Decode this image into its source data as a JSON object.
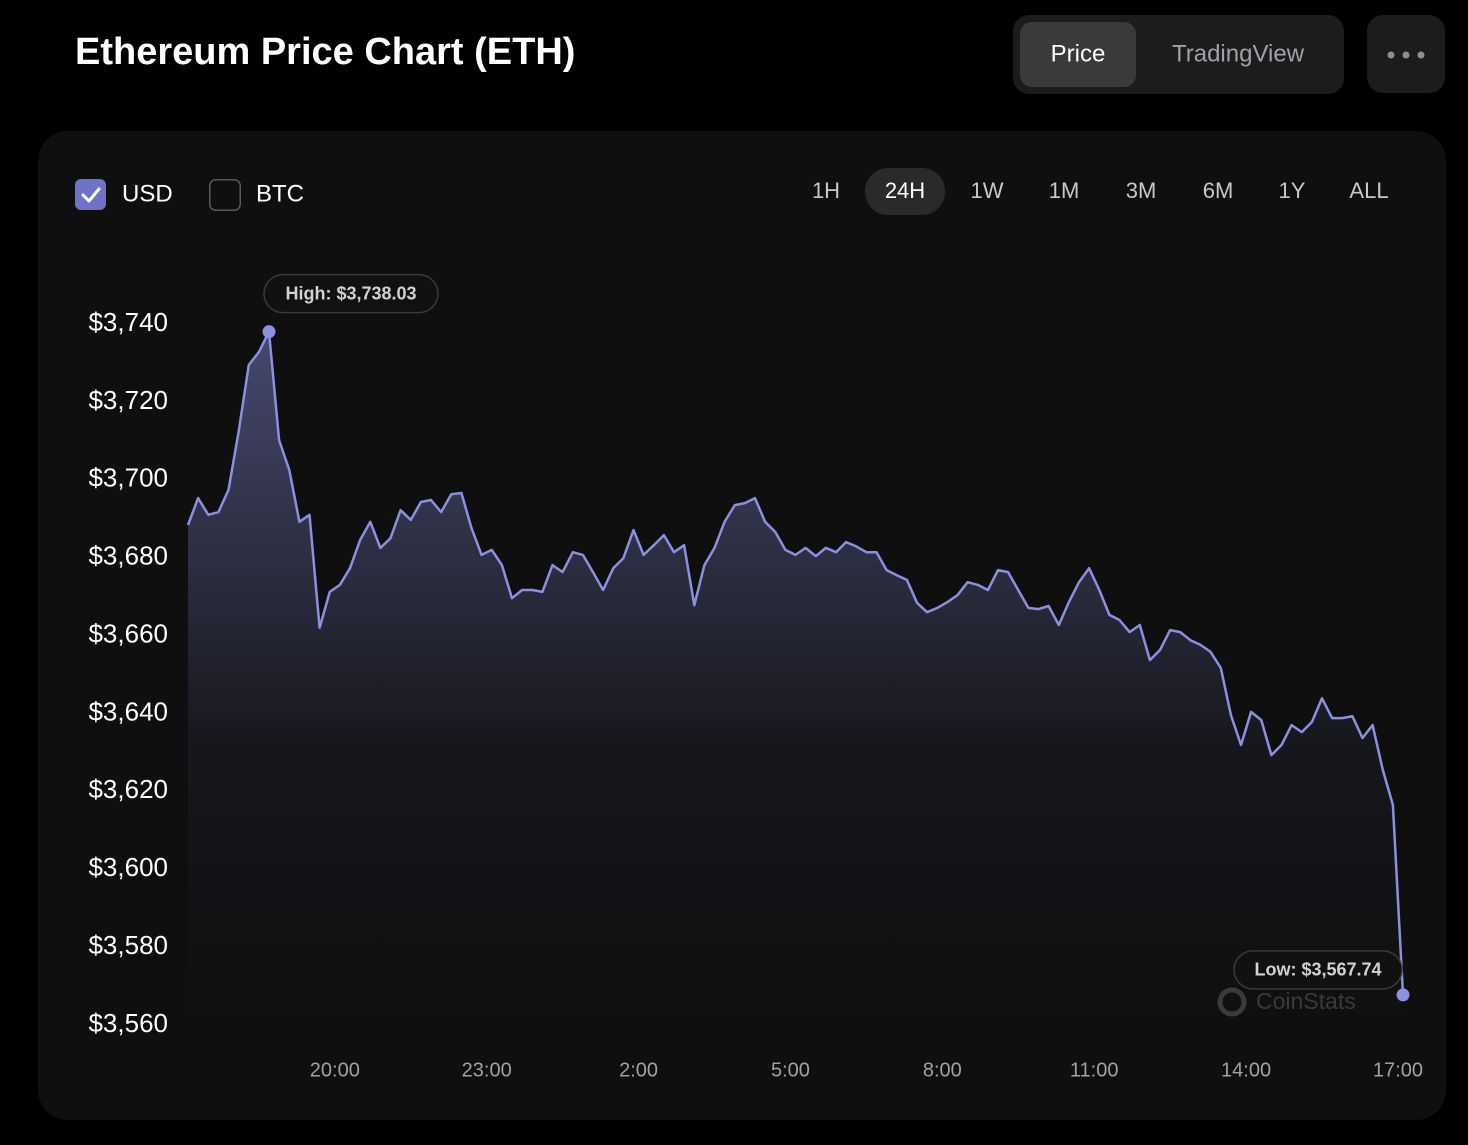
{
  "header": {
    "title": "Ethereum Price Chart (ETH)",
    "tabs": [
      "Price",
      "TradingView"
    ],
    "active_tab": 0
  },
  "currency_options": [
    {
      "label": "USD",
      "checked": true
    },
    {
      "label": "BTC",
      "checked": false
    }
  ],
  "ranges": [
    "1H",
    "24H",
    "1W",
    "1M",
    "3M",
    "6M",
    "1Y",
    "ALL"
  ],
  "active_range": 1,
  "chart_data": {
    "type": "line",
    "color": "#8b90e0",
    "high_label": "High: $3,738.03",
    "low_label": "Low: $3,567.74",
    "watermark": "CoinStats",
    "x": [
      0.1,
      0.3,
      0.5,
      0.7,
      0.9,
      1.1,
      1.3,
      1.5,
      1.7,
      1.9,
      2.1,
      2.3,
      2.5,
      2.7,
      2.9,
      3.1,
      3.3,
      3.5,
      3.7,
      3.9,
      4.1,
      4.3,
      4.5,
      4.7,
      4.9,
      5.1,
      5.3,
      5.5,
      5.7,
      5.9,
      6.1,
      6.3,
      6.5,
      6.7,
      6.9,
      7.1,
      7.3,
      7.5,
      7.7,
      7.9,
      8.1,
      8.3,
      8.5,
      8.7,
      8.9,
      9.1,
      9.3,
      9.5,
      9.7,
      9.9,
      10.1,
      10.3,
      10.5,
      10.7,
      10.9,
      11.1,
      11.3,
      11.5,
      11.7,
      11.9,
      12.1,
      12.3,
      12.5,
      12.7,
      12.9,
      13.1,
      13.3,
      13.5,
      13.7,
      13.9,
      14.1,
      14.3,
      14.5,
      14.7,
      14.9,
      15.1,
      15.3,
      15.5,
      15.7,
      15.9,
      16.1,
      16.3,
      16.5,
      16.7,
      16.9,
      17.1,
      17.3,
      17.5,
      17.7,
      17.9,
      18.1,
      18.3,
      18.5,
      18.7,
      18.9,
      19.1,
      19.3,
      19.5,
      19.7,
      19.9,
      20.1,
      20.3,
      20.5,
      20.7,
      20.9,
      21.1,
      21.3,
      21.5,
      21.7,
      21.9,
      22.1,
      22.3,
      22.5,
      22.7,
      22.9,
      23.1,
      23.3,
      23.5,
      23.7,
      23.9,
      24.1
    ],
    "values": [
      3688.4,
      3695.3,
      3691.0,
      3691.7,
      3697.4,
      3712.3,
      3729.5,
      3732.8,
      3738.03,
      3710.2,
      3702.5,
      3689.2,
      3691.0,
      3662.0,
      3671.2,
      3673.0,
      3677.3,
      3684.5,
      3689.2,
      3682.5,
      3685.0,
      3692.2,
      3689.7,
      3694.3,
      3694.8,
      3691.7,
      3696.3,
      3696.6,
      3687.6,
      3680.7,
      3682.0,
      3678.1,
      3669.6,
      3671.7,
      3671.7,
      3671.2,
      3678.1,
      3676.3,
      3681.4,
      3680.7,
      3676.3,
      3671.7,
      3677.3,
      3679.9,
      3687.1,
      3680.7,
      3683.2,
      3685.8,
      3681.4,
      3683.2,
      3667.8,
      3678.1,
      3682.5,
      3689.2,
      3693.5,
      3694.0,
      3695.3,
      3689.2,
      3686.6,
      3682.0,
      3680.7,
      3682.5,
      3680.4,
      3682.5,
      3681.4,
      3684.0,
      3682.9,
      3681.4,
      3681.4,
      3676.8,
      3675.5,
      3674.3,
      3668.4,
      3666.0,
      3667.1,
      3668.6,
      3670.4,
      3673.7,
      3673.0,
      3671.7,
      3676.8,
      3676.3,
      3671.7,
      3667.1,
      3666.8,
      3667.6,
      3662.7,
      3668.6,
      3673.7,
      3677.3,
      3671.7,
      3665.3,
      3664.0,
      3660.9,
      3662.7,
      3653.7,
      3656.3,
      3661.4,
      3660.9,
      3658.8,
      3657.6,
      3655.8,
      3651.7,
      3639.6,
      3631.9,
      3640.4,
      3638.3,
      3629.3,
      3631.9,
      3637.0,
      3635.2,
      3637.8,
      3643.9,
      3638.8,
      3638.8,
      3639.3,
      3633.7,
      3637.0,
      3625.5,
      3616.5,
      3567.74
    ],
    "xlim": [
      0.1,
      24.1
    ],
    "xticks": [
      {
        "value": 3,
        "label": "20:00"
      },
      {
        "value": 6,
        "label": "23:00"
      },
      {
        "value": 9,
        "label": "2:00"
      },
      {
        "value": 12,
        "label": "5:00"
      },
      {
        "value": 15,
        "label": "8:00"
      },
      {
        "value": 18,
        "label": "11:00"
      },
      {
        "value": 21,
        "label": "14:00"
      },
      {
        "value": 24,
        "label": "17:00"
      }
    ],
    "ylim": [
      3560,
      3740
    ],
    "yticks": [
      {
        "value": 3740,
        "label": "$3,740"
      },
      {
        "value": 3720,
        "label": "$3,720"
      },
      {
        "value": 3700,
        "label": "$3,700"
      },
      {
        "value": 3680,
        "label": "$3,680"
      },
      {
        "value": 3660,
        "label": "$3,660"
      },
      {
        "value": 3640,
        "label": "$3,640"
      },
      {
        "value": 3620,
        "label": "$3,620"
      },
      {
        "value": 3600,
        "label": "$3,600"
      },
      {
        "value": 3580,
        "label": "$3,580"
      },
      {
        "value": 3560,
        "label": "$3,560"
      }
    ]
  }
}
